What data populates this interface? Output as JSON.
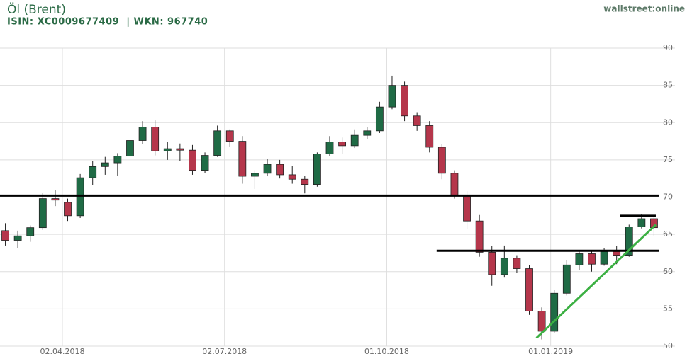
{
  "chart_data": {
    "type": "candlestick",
    "title": "Öl (Brent)",
    "subtitle": "ISIN: XC0009677409  | WKN: 967740",
    "brand": "wallstreet:online",
    "x": [
      "2018-03-01",
      "2018-03-08",
      "2018-03-15",
      "2018-03-22",
      "2018-03-29",
      "2018-04-05",
      "2018-04-12",
      "2018-04-19",
      "2018-04-26",
      "2018-05-03",
      "2018-05-10",
      "2018-05-17",
      "2018-05-24",
      "2018-05-31",
      "2018-06-07",
      "2018-06-14",
      "2018-06-21",
      "2018-06-28",
      "2018-07-05",
      "2018-07-12",
      "2018-07-19",
      "2018-07-26",
      "2018-08-02",
      "2018-08-09",
      "2018-08-16",
      "2018-08-23",
      "2018-08-30",
      "2018-09-06",
      "2018-09-13",
      "2018-09-20",
      "2018-09-27",
      "2018-10-04",
      "2018-10-11",
      "2018-10-18",
      "2018-10-25",
      "2018-11-01",
      "2018-11-08",
      "2018-11-15",
      "2018-11-22",
      "2018-11-29",
      "2018-12-06",
      "2018-12-13",
      "2018-12-20",
      "2018-12-27",
      "2019-01-03",
      "2019-01-10",
      "2019-01-17",
      "2019-01-24",
      "2019-01-31",
      "2019-02-07",
      "2019-02-14",
      "2019-02-21",
      "2019-02-28"
    ],
    "open": [
      65.5,
      64.2,
      64.8,
      65.9,
      69.8,
      69.3,
      67.5,
      72.6,
      74.1,
      74.6,
      75.5,
      77.6,
      79.4,
      76.2,
      76.5,
      76.3,
      73.6,
      75.6,
      78.9,
      77.5,
      72.8,
      73.2,
      74.4,
      73.0,
      72.4,
      71.7,
      75.8,
      77.4,
      76.9,
      78.3,
      78.9,
      82.1,
      85.0,
      80.9,
      79.6,
      76.7,
      73.2,
      70.2,
      66.8,
      62.6,
      59.6,
      61.8,
      60.4,
      54.7,
      52.0,
      57.1,
      60.9,
      62.4,
      61.0,
      62.7,
      62.2,
      66.0,
      67.1
    ],
    "high": [
      66.5,
      65.5,
      66.2,
      70.6,
      70.9,
      69.8,
      73.1,
      74.8,
      75.4,
      75.9,
      78.1,
      80.2,
      80.3,
      77.4,
      77.2,
      77.0,
      76.0,
      79.6,
      79.1,
      78.2,
      73.6,
      75.1,
      75.0,
      74.2,
      72.8,
      76.0,
      78.2,
      78.0,
      79.1,
      79.4,
      82.8,
      86.3,
      85.5,
      81.4,
      80.2,
      77.1,
      73.6,
      70.8,
      67.6,
      63.4,
      63.5,
      62.2,
      60.9,
      55.2,
      57.6,
      61.5,
      62.9,
      62.8,
      63.2,
      63.4,
      66.3,
      67.7,
      67.4
    ],
    "low": [
      63.5,
      63.2,
      64.0,
      65.6,
      68.8,
      66.8,
      67.2,
      71.6,
      73.0,
      72.9,
      75.2,
      77.1,
      75.6,
      75.0,
      74.8,
      73.0,
      73.2,
      75.4,
      76.8,
      71.8,
      71.1,
      72.8,
      72.5,
      71.8,
      70.5,
      71.4,
      75.5,
      75.8,
      76.6,
      77.8,
      78.6,
      81.8,
      80.2,
      78.9,
      76.0,
      72.4,
      69.8,
      65.7,
      62.0,
      58.1,
      59.2,
      59.8,
      54.2,
      50.9,
      51.8,
      56.8,
      60.2,
      60.0,
      60.8,
      61.0,
      62.0,
      65.8,
      64.8
    ],
    "close": [
      64.2,
      64.8,
      65.9,
      69.8,
      69.6,
      67.5,
      72.6,
      74.1,
      74.6,
      75.5,
      77.6,
      79.4,
      76.2,
      76.5,
      76.3,
      73.6,
      75.6,
      78.9,
      77.5,
      72.8,
      73.2,
      74.4,
      73.0,
      72.4,
      71.7,
      75.8,
      77.4,
      76.9,
      78.3,
      78.9,
      82.1,
      85.0,
      80.9,
      79.6,
      76.7,
      73.2,
      70.2,
      66.8,
      62.6,
      59.6,
      61.8,
      60.4,
      54.7,
      52.0,
      57.1,
      60.9,
      62.4,
      61.0,
      62.7,
      62.2,
      66.0,
      67.1,
      65.9
    ],
    "up_color": "#1f6b45",
    "down_color": "#b5364b",
    "xlim": [
      "2018-02-26",
      "2019-03-03"
    ],
    "xticks": [
      {
        "value": "2018-04-02",
        "label": "02.04.2018"
      },
      {
        "value": "2018-07-02",
        "label": "02.07.2018"
      },
      {
        "value": "2018-10-01",
        "label": "01.10.2018"
      },
      {
        "value": "2019-01-01",
        "label": "01.01.2019"
      }
    ],
    "ylim": [
      50,
      90
    ],
    "yticks": [
      50,
      55,
      60,
      65,
      70,
      75,
      80,
      85,
      90
    ],
    "grid": true,
    "hlines": [
      {
        "y": 70.2,
        "from": "2018-02-26",
        "to": "2019-03-03",
        "color": "#000000"
      },
      {
        "y": 62.8,
        "from": "2018-10-29",
        "to": "2019-03-03",
        "color": "#000000"
      },
      {
        "y": 67.5,
        "from": "2019-02-09",
        "to": "2019-03-01",
        "color": "#000000"
      }
    ],
    "trendline": {
      "x": [
        "2018-12-24",
        "2019-03-01"
      ],
      "y": [
        51.1,
        66.3
      ],
      "color": "#3cb043"
    }
  }
}
